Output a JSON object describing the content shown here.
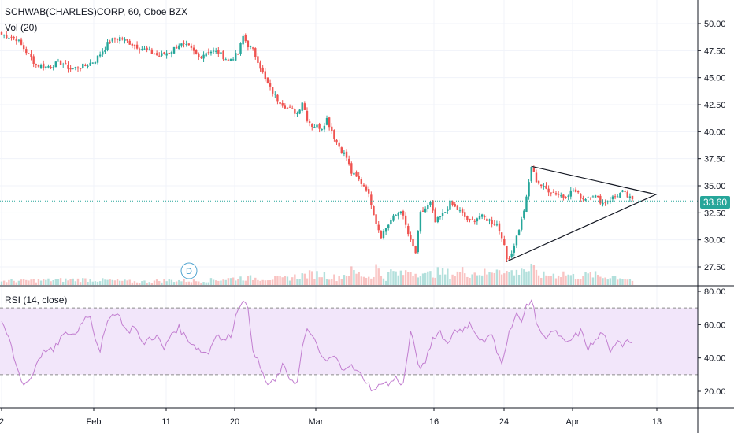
{
  "header": {
    "symbol_line": "SCHWAB(CHARLES)CORP, 60, Cboe BZX",
    "volume_label": "Vol (20)",
    "rsi_label": "RSI (14, close)",
    "dividend_marker": "D",
    "last_price": "33.60"
  },
  "colors": {
    "up": "#26a69a",
    "down": "#ef5350",
    "rsi_line": "#c27ed0",
    "rsi_band": "#f2e6fa",
    "last_price_line": "#26a69a",
    "triangle": "#131722",
    "grid": "#f0f3fa"
  },
  "chart_data": [
    {
      "type": "candlestick",
      "title": "SCHWAB(CHARLES)CORP, 60, Cboe BZX",
      "ylim": [
        26.5,
        51.5
      ],
      "y_ticks": [
        "50.00",
        "47.50",
        "45.00",
        "42.50",
        "40.00",
        "37.50",
        "35.00",
        "32.50",
        "30.00",
        "27.50"
      ],
      "x_ticks": [
        "2",
        "Feb",
        "11",
        "20",
        "Mar",
        "16",
        "24",
        "Apr",
        "13"
      ],
      "last_price": 33.6,
      "grid": true,
      "close_path": [
        [
          0,
          49.0
        ],
        [
          6,
          48.6
        ],
        [
          10,
          47.4
        ],
        [
          14,
          46.2
        ],
        [
          18,
          46.0
        ],
        [
          24,
          46.4
        ],
        [
          28,
          45.8
        ],
        [
          34,
          46.1
        ],
        [
          38,
          46.6
        ],
        [
          44,
          48.4
        ],
        [
          48,
          48.7
        ],
        [
          54,
          48.0
        ],
        [
          60,
          47.4
        ],
        [
          64,
          47.0
        ],
        [
          66,
          47.2
        ],
        [
          69,
          47.5
        ],
        [
          72,
          48.1
        ],
        [
          76,
          47.8
        ],
        [
          80,
          46.9
        ],
        [
          84,
          47.5
        ],
        [
          88,
          47.3
        ],
        [
          92,
          46.6
        ],
        [
          96,
          47.2
        ],
        [
          98,
          48.8
        ],
        [
          100,
          48.0
        ],
        [
          102,
          47.5
        ],
        [
          104,
          46.6
        ],
        [
          107,
          44.8
        ],
        [
          109,
          44.0
        ],
        [
          112,
          43.0
        ],
        [
          116,
          42.2
        ],
        [
          120,
          41.7
        ],
        [
          122,
          42.8
        ],
        [
          124,
          41.2
        ],
        [
          126,
          40.6
        ],
        [
          130,
          40.4
        ],
        [
          132,
          41.2
        ],
        [
          136,
          39.0
        ],
        [
          140,
          37.6
        ],
        [
          142,
          36.2
        ],
        [
          148,
          34.8
        ],
        [
          150,
          33.4
        ],
        [
          152,
          31.6
        ],
        [
          154,
          30.4
        ],
        [
          158,
          31.8
        ],
        [
          162,
          32.8
        ],
        [
          166,
          29.8
        ],
        [
          168,
          28.8
        ],
        [
          170,
          32.4
        ],
        [
          174,
          33.4
        ],
        [
          176,
          31.6
        ],
        [
          180,
          32.6
        ],
        [
          182,
          33.4
        ],
        [
          186,
          32.6
        ],
        [
          190,
          31.6
        ],
        [
          194,
          32.2
        ],
        [
          198,
          31.8
        ],
        [
          201,
          31.4
        ],
        [
          203,
          30.4
        ],
        [
          205,
          28.2
        ],
        [
          207,
          28.8
        ],
        [
          211,
          31.8
        ],
        [
          213,
          33.8
        ],
        [
          215,
          36.8
        ],
        [
          217,
          35.5
        ],
        [
          220,
          34.8
        ],
        [
          224,
          34.4
        ],
        [
          228,
          34.0
        ],
        [
          232,
          34.6
        ],
        [
          236,
          33.8
        ],
        [
          240,
          34.2
        ],
        [
          244,
          33.4
        ],
        [
          248,
          33.9
        ],
        [
          252,
          34.4
        ],
        [
          254,
          34.0
        ],
        [
          256,
          33.6
        ]
      ],
      "series": [
        {
          "name": "Vol (20)",
          "x": [
            0,
            34,
            56,
            68,
            80,
            97,
            114,
            124,
            130,
            136,
            142,
            148,
            150,
            152,
            154,
            156,
            158,
            162,
            166,
            168,
            170,
            172,
            176,
            180,
            184,
            188,
            190,
            194,
            198,
            202,
            204,
            207,
            209,
            211,
            213,
            215,
            217,
            220,
            224,
            228,
            232,
            236,
            240,
            244,
            248,
            252,
            256
          ],
          "y": [
            5,
            7,
            4,
            6,
            5,
            9,
            8,
            13,
            14,
            9,
            17,
            11,
            10,
            23,
            12,
            9,
            17,
            13,
            19,
            15,
            19,
            12,
            16,
            15,
            14,
            18,
            15,
            16,
            14,
            26,
            15,
            17,
            15,
            24,
            18,
            21,
            15,
            12,
            13,
            15,
            11,
            12,
            13,
            10,
            11,
            9,
            6
          ]
        },
        {
          "name": "RSI (14, close)",
          "ylim": [
            10,
            81
          ],
          "y_ticks": [
            "80.00",
            "60.00",
            "40.00",
            "20.00"
          ],
          "band": [
            30,
            70
          ],
          "x": [
            0,
            3,
            6,
            9,
            12,
            15,
            18,
            21,
            24,
            27,
            30,
            33,
            36,
            38,
            40,
            42,
            45,
            48,
            51,
            54,
            57,
            60,
            63,
            66,
            69,
            72,
            75,
            78,
            81,
            84,
            87,
            90,
            93,
            96,
            98,
            100,
            102,
            104,
            106,
            108,
            111,
            114,
            117,
            120,
            122,
            124,
            126,
            129,
            132,
            135,
            138,
            141,
            144,
            147,
            150,
            152,
            154,
            157,
            160,
            163,
            166,
            168,
            170,
            172,
            175,
            178,
            181,
            184,
            187,
            190,
            193,
            196,
            199,
            201,
            203,
            205,
            207,
            209,
            211,
            213,
            215,
            217,
            220,
            223,
            226,
            229,
            232,
            235,
            238,
            241,
            244,
            247,
            250,
            252,
            254,
            256
          ],
          "y": [
            60,
            52,
            35,
            24,
            28,
            40,
            45,
            44,
            52,
            55,
            54,
            63,
            66,
            52,
            45,
            56,
            68,
            65,
            55,
            60,
            48,
            52,
            53,
            45,
            55,
            58,
            52,
            48,
            44,
            43,
            55,
            50,
            54,
            70,
            76,
            68,
            46,
            38,
            30,
            24,
            26,
            35,
            28,
            25,
            46,
            56,
            55,
            42,
            38,
            41,
            34,
            36,
            32,
            28,
            22,
            20,
            26,
            24,
            28,
            24,
            55,
            44,
            32,
            38,
            52,
            56,
            48,
            58,
            55,
            62,
            52,
            50,
            54,
            43,
            38,
            50,
            60,
            67,
            60,
            72,
            75,
            62,
            52,
            56,
            54,
            48,
            52,
            56,
            46,
            50,
            56,
            42,
            52,
            48,
            52,
            50
          ]
        }
      ]
    }
  ]
}
